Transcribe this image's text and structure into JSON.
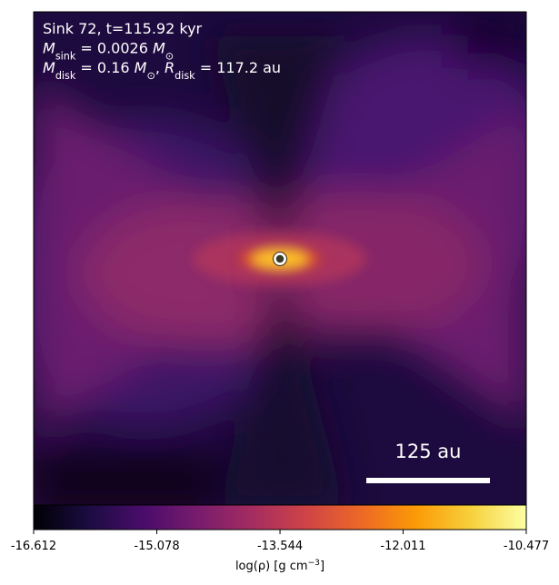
{
  "chart_data": {
    "type": "image",
    "annotation_lines": [
      [
        {
          "text": "Sink 72, t=115.92 kyr"
        }
      ],
      [
        {
          "text": "M"
        },
        {
          "text": "sink",
          "sub": true
        },
        {
          "text": " = 0.0026 "
        },
        {
          "text": "M"
        },
        {
          "text": "⊙",
          "sub": true
        }
      ],
      [
        {
          "text": "M"
        },
        {
          "text": "disk",
          "sub": true
        },
        {
          "text": " = 0.16 "
        },
        {
          "text": "M"
        },
        {
          "text": "⊙",
          "sub": true
        },
        {
          "text": ", "
        },
        {
          "text": "R"
        },
        {
          "text": "disk",
          "sub": true
        },
        {
          "text": " = 117.2 au"
        }
      ]
    ],
    "scale_bar_label": "125 au",
    "colorbar": {
      "colormap": "inferno",
      "clim": [
        -16.612,
        -10.477
      ],
      "ticks": [
        -16.612,
        -15.078,
        -13.544,
        -12.011,
        -10.477
      ],
      "label": [
        {
          "text": "log(ρ) [g cm"
        },
        {
          "text": "−3",
          "sup": true
        },
        {
          "text": "]"
        }
      ]
    }
  }
}
